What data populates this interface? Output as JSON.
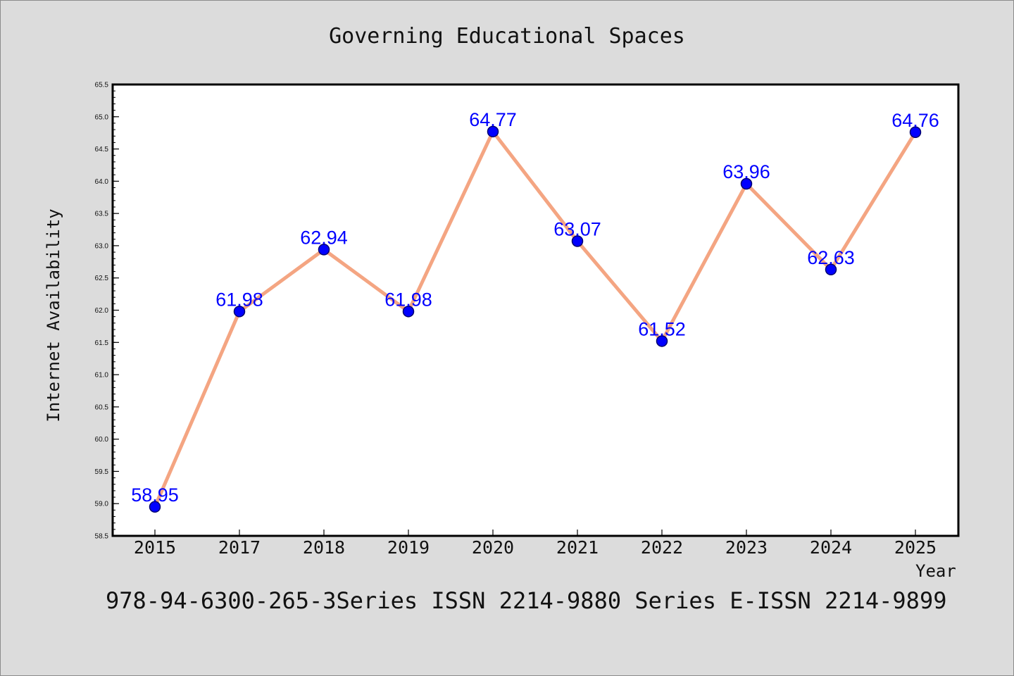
{
  "chart_data": {
    "type": "line",
    "title": "Governing Educational Spaces",
    "xlabel": "Year",
    "ylabel": "Internet Availability",
    "footer": "978-94-6300-265-3Series ISSN 2214-9880 Series E-ISSN 2214-9899",
    "categories": [
      "2015",
      "2017",
      "2018",
      "2019",
      "2020",
      "2021",
      "2022",
      "2023",
      "2024",
      "2025"
    ],
    "series": [
      {
        "values": [
          58.95,
          61.98,
          62.94,
          61.98,
          64.77,
          63.07,
          61.52,
          63.96,
          62.63,
          64.76
        ],
        "labels": [
          "58.95",
          "61.98",
          "62.94",
          "61.98",
          "64.77",
          "63.07",
          "61.52",
          "63.96",
          "62.63",
          "64.76"
        ]
      }
    ],
    "ylim": [
      58.5,
      65.5
    ],
    "yticks": [
      "58.5",
      "59.0",
      "59.5",
      "60.0",
      "60.5",
      "61.0",
      "61.5",
      "62.0",
      "62.5",
      "63.0",
      "63.5",
      "64.0",
      "64.5",
      "65.0",
      "65.5"
    ],
    "grid": false,
    "colors": {
      "line": "#f4a582",
      "marker": "#0000ff",
      "marker_edge": "#00006e",
      "label": "#0000ff",
      "background": "#dcdcdc",
      "plot_background": "#ffffff"
    }
  }
}
